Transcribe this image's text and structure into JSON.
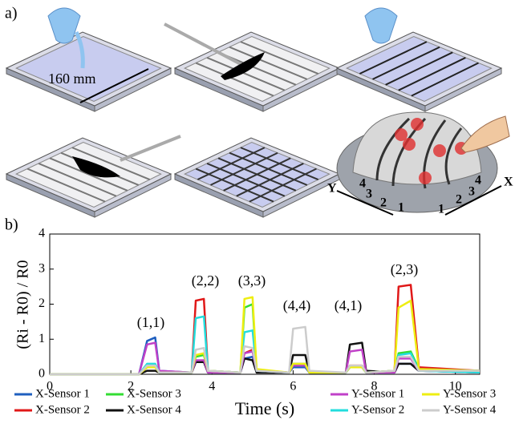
{
  "panel_a": {
    "label": "a)",
    "dimension": "160 mm",
    "dome_labels": [
      "4",
      "3",
      "2",
      "1",
      "1",
      "2",
      "3",
      "4"
    ],
    "axis_x": "X",
    "axis_y": "Y"
  },
  "chart_data": {
    "type": "line",
    "panel_label": "b)",
    "xlabel": "Time (s)",
    "ylabel": "(Ri - R0) / R0",
    "xlim": [
      0,
      10.6
    ],
    "ylim": [
      0,
      4
    ],
    "xticks": [
      0,
      2,
      4,
      6,
      8,
      10
    ],
    "yticks": [
      0,
      1,
      2,
      3,
      4
    ],
    "annotations": [
      "(1,1)",
      "(2,2)",
      "(3,3)",
      "(4,4)",
      "(4,1)",
      "(2,3)"
    ],
    "x": [
      0,
      2.2,
      2.4,
      2.6,
      2.7,
      3.5,
      3.6,
      3.8,
      3.9,
      4.7,
      4.8,
      5.0,
      5.1,
      5.9,
      6.0,
      6.3,
      6.4,
      7.3,
      7.4,
      7.7,
      7.8,
      8.5,
      8.6,
      8.9,
      9.1,
      10.6
    ],
    "series": [
      {
        "name": "X-Sensor 1",
        "color": "#1f5fbf",
        "values": [
          0,
          0,
          0.95,
          1.05,
          0.1,
          0.05,
          0.35,
          0.35,
          0.05,
          0.05,
          0.45,
          0.5,
          0.1,
          0.05,
          0.2,
          0.2,
          0.05,
          0.05,
          0.2,
          0.2,
          0.05,
          0.05,
          0.3,
          0.3,
          0.1,
          0.1
        ]
      },
      {
        "name": "X-Sensor 2",
        "color": "#e01818",
        "values": [
          0,
          0,
          0.2,
          0.25,
          0.05,
          0.05,
          2.1,
          2.15,
          0.1,
          0.05,
          0.6,
          0.7,
          0.1,
          0.05,
          0.3,
          0.3,
          0.05,
          0.05,
          0.25,
          0.25,
          0.05,
          0.1,
          2.5,
          2.55,
          0.2,
          0.1
        ]
      },
      {
        "name": "X-Sensor 3",
        "color": "#33dd33",
        "values": [
          0,
          0,
          0.2,
          0.2,
          0.05,
          0.05,
          0.5,
          0.55,
          0.1,
          0.05,
          1.9,
          2.0,
          0.1,
          0.05,
          0.25,
          0.25,
          0.05,
          0.05,
          0.2,
          0.2,
          0.05,
          0.1,
          0.6,
          0.65,
          0.15,
          0.1
        ]
      },
      {
        "name": "X-Sensor 4",
        "color": "#111111",
        "values": [
          0,
          0,
          0.1,
          0.1,
          0.05,
          0.05,
          0.35,
          0.35,
          0.05,
          0.05,
          0.45,
          0.4,
          0.05,
          0.05,
          0.55,
          0.55,
          0.05,
          0.05,
          0.85,
          0.9,
          0.1,
          0.05,
          0.3,
          0.3,
          0.1,
          0.05
        ]
      },
      {
        "name": "Y-Sensor 1",
        "color": "#c040c8",
        "values": [
          0,
          0,
          0.85,
          0.9,
          0.1,
          0.05,
          0.4,
          0.4,
          0.05,
          0.05,
          0.6,
          0.65,
          0.1,
          0.05,
          0.25,
          0.25,
          0.05,
          0.05,
          0.65,
          0.7,
          0.05,
          0.05,
          0.45,
          0.45,
          0.1,
          0.05
        ]
      },
      {
        "name": "Y-Sensor 2",
        "color": "#22dddd",
        "values": [
          0,
          0,
          0.3,
          0.3,
          0.05,
          0.05,
          1.6,
          1.65,
          0.1,
          0.05,
          1.2,
          1.25,
          0.1,
          0.05,
          0.3,
          0.3,
          0.05,
          0.05,
          0.2,
          0.2,
          0.05,
          0.1,
          0.55,
          0.6,
          0.1,
          0.05
        ]
      },
      {
        "name": "Y-Sensor 3",
        "color": "#eeee11",
        "values": [
          0,
          0,
          0.2,
          0.2,
          0.05,
          0.05,
          0.55,
          0.6,
          0.1,
          0.05,
          2.15,
          2.2,
          0.15,
          0.05,
          0.3,
          0.3,
          0.05,
          0.05,
          0.2,
          0.2,
          0.05,
          0.1,
          1.9,
          2.1,
          0.15,
          0.1
        ]
      },
      {
        "name": "Y-Sensor 4",
        "color": "#cccccc",
        "values": [
          0,
          0,
          0.25,
          0.25,
          0.05,
          0.05,
          0.7,
          0.75,
          0.1,
          0.05,
          0.8,
          0.75,
          0.1,
          0.05,
          1.3,
          1.35,
          0.1,
          0.05,
          0.25,
          0.25,
          0.05,
          0.1,
          0.5,
          0.5,
          0.1,
          0.1
        ]
      }
    ]
  }
}
